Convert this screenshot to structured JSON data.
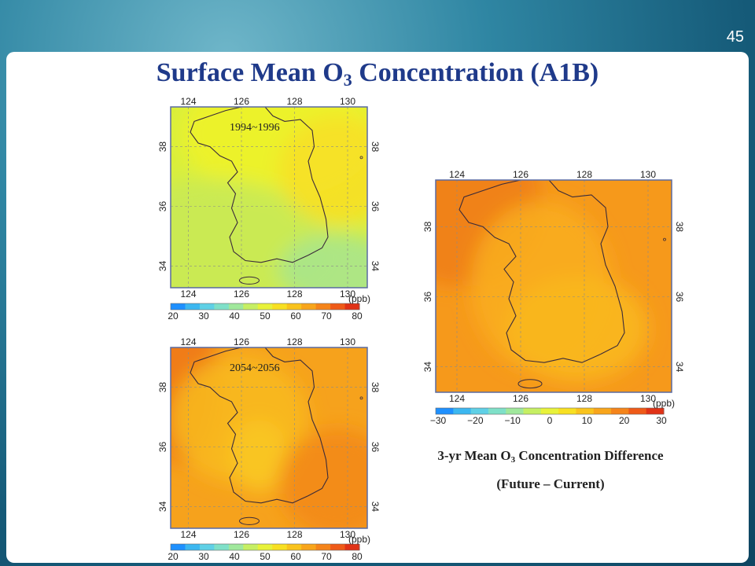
{
  "slide": {
    "number": "45",
    "title_prefix": "Surface Mean O",
    "title_sub": "3",
    "title_suffix": " Concentration  (A1B)"
  },
  "maps": [
    {
      "id": "current",
      "period_label": "1994~1996",
      "lon_ticks": [
        "124",
        "126",
        "128",
        "130"
      ],
      "lat_ticks": [
        "34",
        "36",
        "38"
      ],
      "unit": "(ppb)",
      "colorbar_ticks": [
        "20",
        "30",
        "40",
        "50",
        "60",
        "70",
        "80"
      ]
    },
    {
      "id": "future",
      "period_label": "2054~2056",
      "lon_ticks": [
        "124",
        "126",
        "128",
        "130"
      ],
      "lat_ticks": [
        "34",
        "36",
        "38"
      ],
      "unit": "(ppb)",
      "colorbar_ticks": [
        "20",
        "30",
        "40",
        "50",
        "60",
        "70",
        "80"
      ]
    },
    {
      "id": "difference",
      "period_label": "",
      "lon_ticks": [
        "124",
        "126",
        "128",
        "130"
      ],
      "lat_ticks": [
        "34",
        "36",
        "38"
      ],
      "unit": "(ppb)",
      "colorbar_ticks": [
        "−30",
        "−20",
        "−10",
        "0",
        "10",
        "20",
        "30"
      ]
    }
  ],
  "caption": {
    "line1_prefix": "3-yr Mean O",
    "line1_sub": "3",
    "line1_suffix": " Concentration Difference",
    "line2": "(Future – Current)"
  },
  "colors": {
    "colorbar": [
      "#1e90ff",
      "#3cb7f0",
      "#5fd0e6",
      "#7fe0c8",
      "#a0e89c",
      "#c6ef63",
      "#e8f23a",
      "#f8e022",
      "#f9c31d",
      "#f8a51b",
      "#f5841a",
      "#ef5a18",
      "#e03216"
    ]
  }
}
